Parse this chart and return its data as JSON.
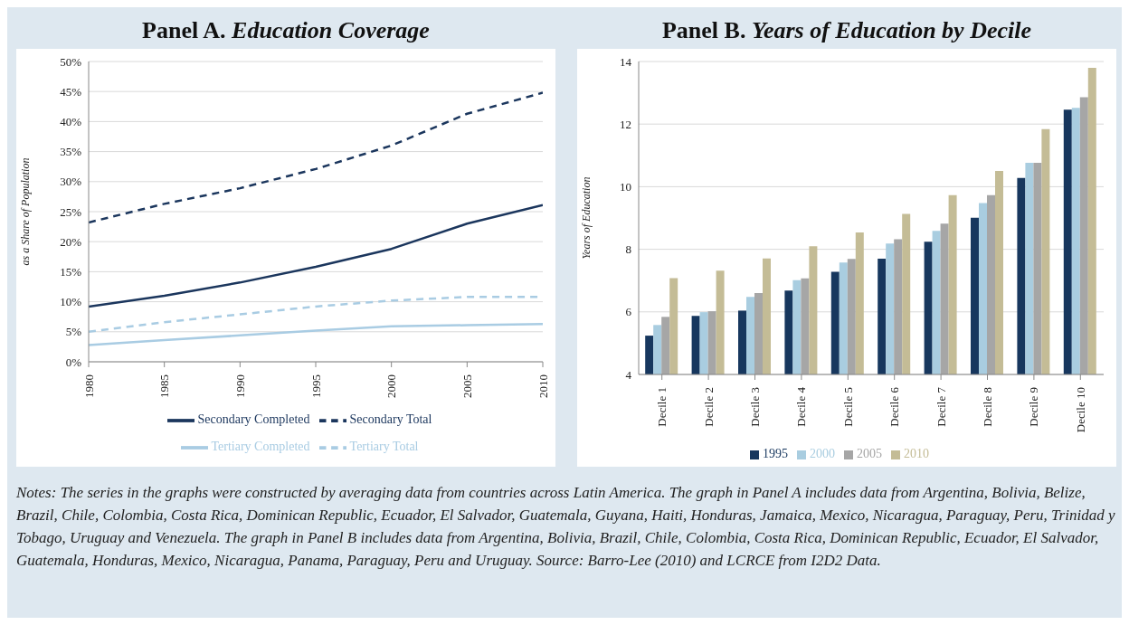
{
  "chart_data": [
    {
      "type": "line",
      "title": "Panel A. Education Coverage",
      "ylabel": "as a Share of Population",
      "x": [
        1980,
        1985,
        1990,
        1995,
        2000,
        2005,
        2010
      ],
      "xlim": [
        1980,
        2010
      ],
      "xticks": [
        1980,
        1985,
        1990,
        1995,
        2000,
        2005,
        2010
      ],
      "ylim": [
        0,
        50
      ],
      "yticks": [
        {
          "value": 0,
          "label": "0%"
        },
        {
          "value": 5,
          "label": "5%"
        },
        {
          "value": 10,
          "label": "10%"
        },
        {
          "value": 15,
          "label": "15%"
        },
        {
          "value": 20,
          "label": "20%"
        },
        {
          "value": 25,
          "label": "25%"
        },
        {
          "value": 30,
          "label": "30%"
        },
        {
          "value": 35,
          "label": "35%"
        },
        {
          "value": 40,
          "label": "40%"
        },
        {
          "value": 45,
          "label": "45%"
        },
        {
          "value": 50,
          "label": "50%"
        }
      ],
      "grid": "y",
      "legend": "bottom",
      "marker": "none",
      "series": [
        {
          "name": "Secondary Completed",
          "color": "#1b365d",
          "line_style": "solid",
          "values": [
            9.2,
            11.0,
            13.2,
            15.8,
            18.8,
            23.0,
            26.1
          ]
        },
        {
          "name": "Tertiary Completed",
          "color": "#a9cce3",
          "line_style": "solid",
          "values": [
            2.8,
            3.6,
            4.4,
            5.2,
            5.9,
            6.1,
            6.3
          ]
        },
        {
          "name": "Secondary Total",
          "color": "#1b365d",
          "line_style": "dashed",
          "values": [
            23.2,
            26.3,
            28.9,
            32.1,
            36.0,
            41.3,
            44.8
          ]
        },
        {
          "name": "Tertiary Total",
          "color": "#a9cce3",
          "line_style": "dashed",
          "values": [
            5.0,
            6.6,
            7.9,
            9.2,
            10.2,
            10.8,
            10.8
          ]
        }
      ]
    },
    {
      "type": "bar",
      "title": "Panel B. Years of Education by Decile",
      "ylabel": "Years of Education",
      "categories": [
        "Decile 1",
        "Decile 2",
        "Decile 3",
        "Decile 4",
        "Decile 5",
        "Decile 6",
        "Decile 7",
        "Decile 8",
        "Decile 9",
        "Decile 10"
      ],
      "ylim": [
        4,
        14
      ],
      "yticks": [
        4,
        6,
        8,
        10,
        12,
        14
      ],
      "grid": "y",
      "legend": "bottom",
      "series": [
        {
          "name": "1995",
          "color": "#17375e",
          "values": [
            5.24,
            5.87,
            6.04,
            6.68,
            7.28,
            7.7,
            8.24,
            9.01,
            10.28,
            12.46
          ]
        },
        {
          "name": "2000",
          "color": "#a9cde0",
          "values": [
            5.58,
            5.99,
            6.48,
            7.01,
            7.58,
            8.18,
            8.59,
            9.48,
            10.76,
            12.52
          ]
        },
        {
          "name": "2005",
          "color": "#a6a6a6",
          "values": [
            5.84,
            6.02,
            6.6,
            7.07,
            7.69,
            8.32,
            8.82,
            9.73,
            10.76,
            12.86
          ]
        },
        {
          "name": "2010",
          "color": "#c4bc96",
          "values": [
            7.08,
            7.32,
            7.71,
            8.1,
            8.54,
            9.13,
            9.73,
            10.5,
            11.84,
            13.8
          ]
        }
      ],
      "annotations": [
        "Notes: The series in the graphs were constructed by averaging data from countries across Latin America. The graph in Panel A includes data from Argentina, Bolivia, Belize, Brazil, Chile, Colombia, Costa Rica, Dominican Republic, Ecuador, El Salvador, Guatemala, Guyana, Haiti, Honduras, Jamaica, Mexico, Nicaragua, Paraguay, Peru, Trinidad y Tobago, Uruguay and Venezuela. The graph in Panel B includes data from Argentina, Bolivia, Brazil, Chile, Colombia, Costa Rica, Dominican Republic, Ecuador, El Salvador, Guatemala, Honduras, Mexico, Nicaragua, Panama, Paraguay, Peru and Uruguay. Source: Barro-Lee (2010) and LCRCE from I2D2 Data."
      ]
    }
  ]
}
